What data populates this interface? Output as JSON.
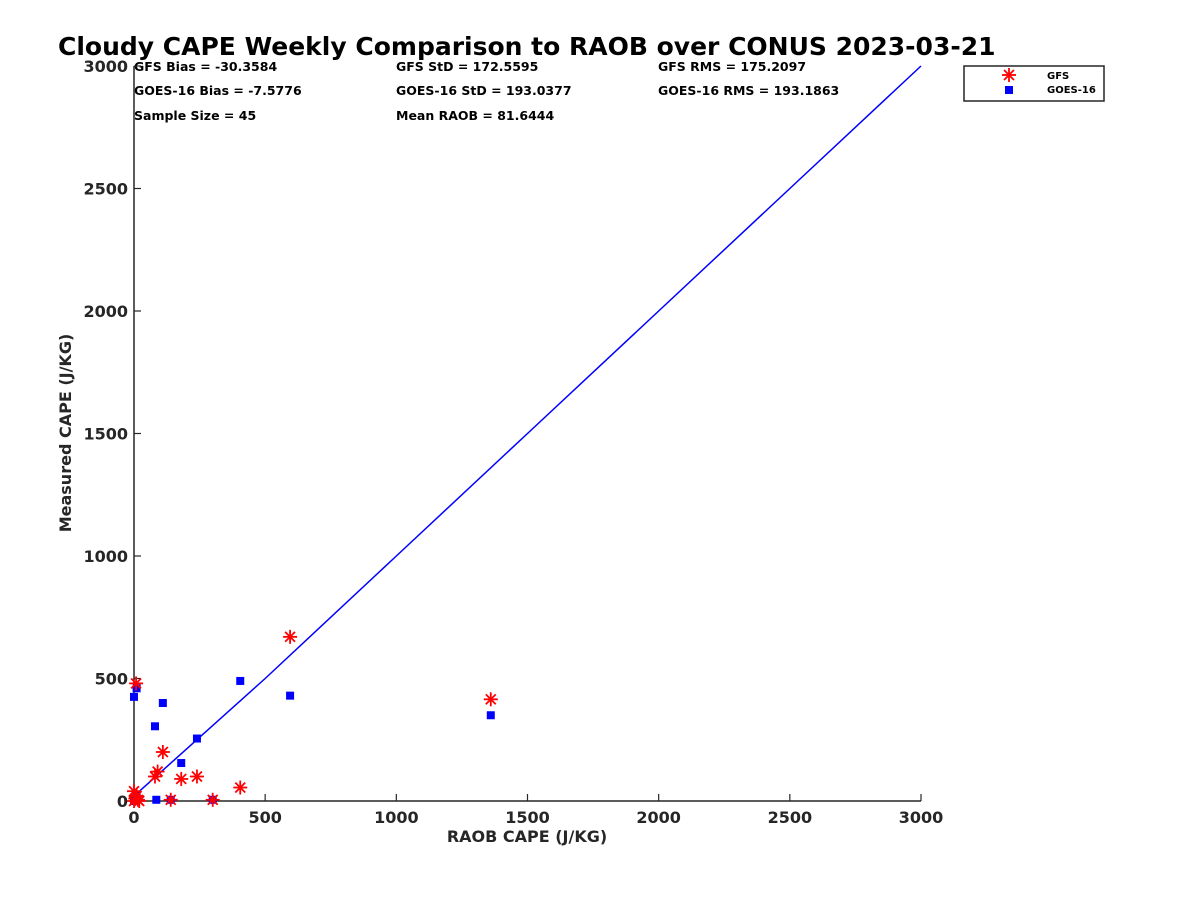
{
  "chart_data": {
    "type": "scatter",
    "title": "Cloudy CAPE Weekly Comparison to RAOB over CONUS 2023-03-21",
    "xlabel": "RAOB CAPE (J/KG)",
    "ylabel": "Measured CAPE (J/KG)",
    "xlim": [
      0,
      3000
    ],
    "ylim": [
      0,
      3000
    ],
    "xticks": [
      0,
      500,
      1000,
      1500,
      2000,
      2500,
      3000
    ],
    "yticks": [
      0,
      500,
      1000,
      1500,
      2000,
      2500,
      3000
    ],
    "xtick_labels": [
      "0",
      "500",
      "1000",
      "1500",
      "2000",
      "2500",
      "3000"
    ],
    "ytick_labels": [
      "0",
      "500",
      "1000",
      "1500",
      "2000",
      "2500",
      "3000"
    ],
    "grid": false,
    "legend_position": "top-right, outside plot",
    "stats": [
      "GFS Bias = -30.3584",
      "GFS StD = 172.5595",
      "GFS RMS = 175.2097",
      "GOES-16 Bias = -7.5776",
      "GOES-16 StD = 193.0377",
      "GOES-16 RMS = 193.1863",
      "Sample Size = 45",
      "Mean RAOB = 81.6444"
    ],
    "series": [
      {
        "name": "GFS",
        "marker": "asterisk",
        "color": "#ff0000",
        "points": [
          [
            0,
            0
          ],
          [
            5,
            10
          ],
          [
            10,
            20
          ],
          [
            0,
            40
          ],
          [
            15,
            5
          ],
          [
            20,
            0
          ],
          [
            8,
            480
          ],
          [
            80,
            100
          ],
          [
            90,
            120
          ],
          [
            110,
            200
          ],
          [
            140,
            5
          ],
          [
            180,
            90
          ],
          [
            240,
            100
          ],
          [
            300,
            5
          ],
          [
            405,
            55
          ],
          [
            595,
            670
          ],
          [
            1360,
            415
          ]
        ]
      },
      {
        "name": "GOES-16",
        "marker": "square",
        "color": "#0000ff",
        "points": [
          [
            0,
            0
          ],
          [
            5,
            10
          ],
          [
            10,
            20
          ],
          [
            0,
            425
          ],
          [
            10,
            460
          ],
          [
            80,
            305
          ],
          [
            85,
            5
          ],
          [
            110,
            400
          ],
          [
            140,
            5
          ],
          [
            180,
            155
          ],
          [
            240,
            255
          ],
          [
            300,
            5
          ],
          [
            405,
            490
          ],
          [
            595,
            430
          ],
          [
            1360,
            350
          ]
        ]
      }
    ],
    "reference_line": {
      "name": "1:1",
      "color": "#0000ff",
      "points": [
        [
          0,
          20
        ],
        [
          500,
          500
        ],
        [
          1000,
          1000
        ],
        [
          1500,
          1500
        ],
        [
          2000,
          2000
        ],
        [
          2500,
          2500
        ],
        [
          3000,
          3000
        ]
      ]
    }
  }
}
